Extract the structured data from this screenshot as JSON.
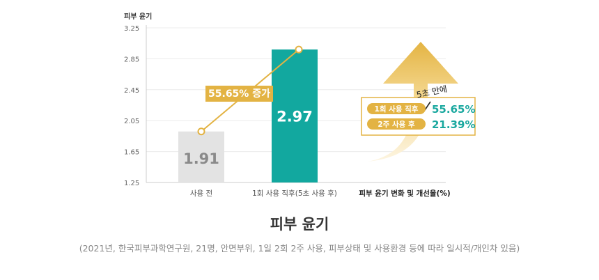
{
  "chart_data": {
    "type": "bar",
    "ylabel": "피부 윤기",
    "ylim": [
      1.25,
      3.25
    ],
    "yticks": [
      "3.25",
      "2.85",
      "2.45",
      "2.05",
      "1.65",
      "1.25"
    ],
    "categories": [
      "사용 전",
      "1회 사용 직후(5초 사용 후)"
    ],
    "values": [
      1.91,
      2.97
    ],
    "value_labels": [
      "1.91",
      "2.97"
    ],
    "bar_colors": [
      "#e3e3e3",
      "#12a89f"
    ],
    "value_label_colors": [
      "#8a8a8a",
      "#ffffff"
    ],
    "trend_color": "#e3b343",
    "annotation": "55.65% 증가",
    "legend": {
      "title": "피부 윤기 변화 및 개선율(%)",
      "subtitle": "5초 만에",
      "items": [
        {
          "label": "1회 사용 직후",
          "value": "55.65%"
        },
        {
          "label": "2주 사용 후",
          "value": "21.39%"
        }
      ]
    }
  },
  "caption": "피부 윤기",
  "note": "(2021년, 한국피부과학연구원, 21명, 안면부위, 1일 2회 2주 사용, 피부상태 및 사용환경 등에 따라 일시적/개인차 있음)"
}
